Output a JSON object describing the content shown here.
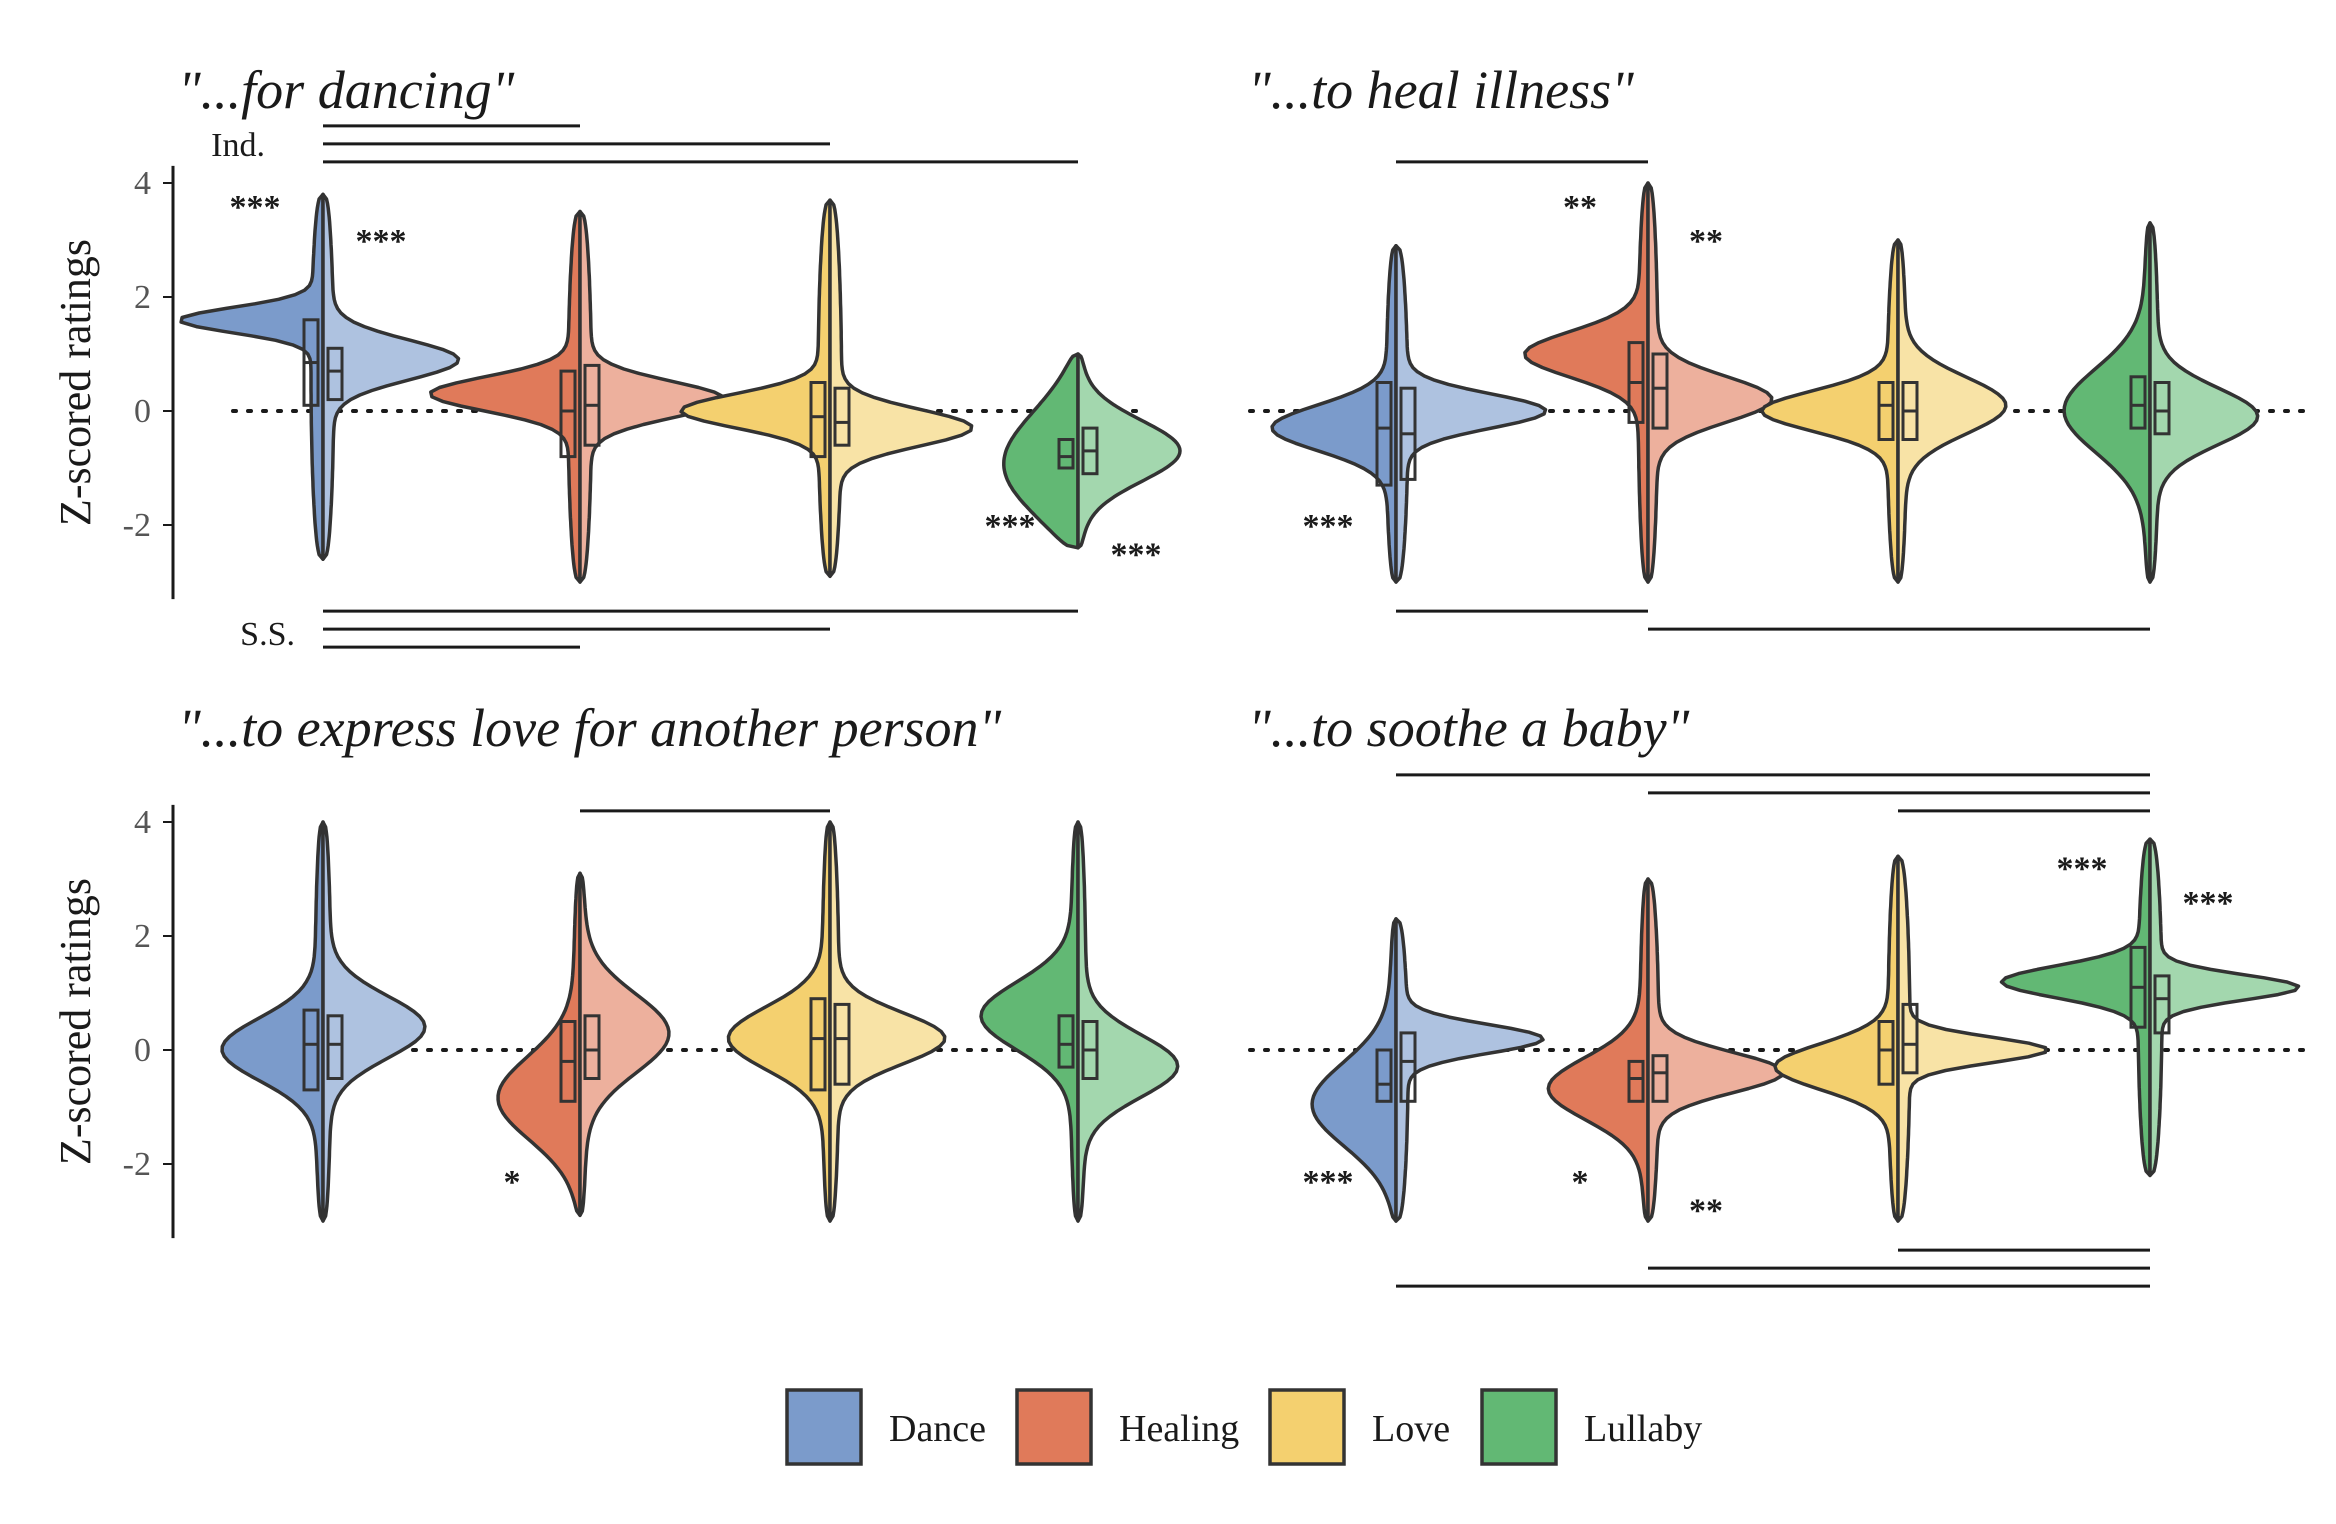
{
  "chart_data": {
    "type": "violin",
    "ylim": [
      -3.3,
      4.3
    ],
    "yticks": [
      -2,
      0,
      2,
      4
    ],
    "ylabel": "Z-scored ratings",
    "reference_line": {
      "y": 0,
      "style": "dotted"
    },
    "groups": [
      "Dance",
      "Healing",
      "Love",
      "Lullaby"
    ],
    "colors": {
      "Dance": {
        "ind": "#7b9bcb",
        "ss": "#aec2e0"
      },
      "Healing": {
        "ind": "#e07a5a",
        "ss": "#edb09d"
      },
      "Love": {
        "ind": "#f4d06f",
        "ss": "#f8e3a6"
      },
      "Lullaby": {
        "ind": "#62b874",
        "ss": "#a3d7ae"
      }
    },
    "bracket_labels": {
      "top": "Ind.",
      "bottom": "S.S."
    },
    "legend": [
      {
        "label": "Dance",
        "color": "#7b9bcb"
      },
      {
        "label": "Healing",
        "color": "#e07a5a"
      },
      {
        "label": "Love",
        "color": "#f4d06f"
      },
      {
        "label": "Lullaby",
        "color": "#62b874"
      }
    ],
    "panels": [
      {
        "title": "\"...for dancing\"",
        "violins": [
          {
            "group": "Dance",
            "range": [
              -2.6,
              3.8
            ],
            "ind_mode": 1.6,
            "ind_w": 0.22,
            "ss_mode": 0.9,
            "ss_w": 0.35,
            "box_ind": [
              0.1,
              0.85,
              1.6
            ],
            "box_ss": [
              0.2,
              0.7,
              1.1
            ]
          },
          {
            "group": "Healing",
            "range": [
              -3.0,
              3.5
            ],
            "ind_mode": 0.3,
            "ind_w": 0.3,
            "ss_mode": 0.2,
            "ss_w": 0.32,
            "box_ind": [
              -0.8,
              0.0,
              0.7
            ],
            "box_ss": [
              -0.6,
              0.1,
              0.8
            ]
          },
          {
            "group": "Love",
            "range": [
              -2.9,
              3.7
            ],
            "ind_mode": 0.0,
            "ind_w": 0.3,
            "ss_mode": -0.3,
            "ss_w": 0.32,
            "box_ind": [
              -0.8,
              -0.1,
              0.5
            ],
            "box_ss": [
              -0.6,
              -0.2,
              0.4
            ]
          },
          {
            "group": "Lullaby",
            "range": [
              -2.4,
              1.0
            ],
            "ind_mode": -1.0,
            "ind_w": 1.0,
            "ss_mode": -0.7,
            "ss_w": 0.55,
            "box_ind": [
              -1.0,
              -0.8,
              -0.5
            ],
            "box_ss": [
              -1.1,
              -0.7,
              -0.3
            ]
          }
        ],
        "stars": [
          {
            "pos": 1,
            "side": "ind",
            "text": "***",
            "y": 3.6
          },
          {
            "pos": 1,
            "side": "ss",
            "text": "***",
            "y": 3.0
          },
          {
            "pos": 4,
            "side": "ind",
            "text": "***",
            "y": -2.0
          },
          {
            "pos": 4,
            "side": "ss",
            "text": "***",
            "y": -2.5
          }
        ],
        "brackets_top": [
          [
            1,
            2
          ],
          [
            1,
            3
          ],
          [
            1,
            4
          ]
        ],
        "brackets_bottom": [
          [
            1,
            4
          ],
          [
            1,
            3
          ],
          [
            1,
            2
          ]
        ]
      },
      {
        "title": "\"...to heal illness\"",
        "violins": [
          {
            "group": "Dance",
            "range": [
              -3.0,
              2.9
            ],
            "ind_mode": -0.3,
            "ind_w": 0.4,
            "ss_mode": 0.0,
            "ss_w": 0.3,
            "box_ind": [
              -1.3,
              -0.3,
              0.5
            ],
            "box_ss": [
              -1.2,
              -0.4,
              0.4
            ]
          },
          {
            "group": "Healing",
            "range": [
              -3.0,
              4.0
            ],
            "ind_mode": 1.0,
            "ind_w": 0.4,
            "ss_mode": 0.2,
            "ss_w": 0.4,
            "box_ind": [
              -0.2,
              0.5,
              1.2
            ],
            "box_ss": [
              -0.3,
              0.4,
              1.0
            ]
          },
          {
            "group": "Love",
            "range": [
              -3.0,
              3.0
            ],
            "ind_mode": 0.0,
            "ind_w": 0.35,
            "ss_mode": 0.1,
            "ss_w": 0.5,
            "box_ind": [
              -0.5,
              0.1,
              0.5
            ],
            "box_ss": [
              -0.5,
              0.0,
              0.5
            ]
          },
          {
            "group": "Lullaby",
            "range": [
              -3.0,
              3.3
            ],
            "ind_mode": 0.0,
            "ind_w": 0.75,
            "ss_mode": -0.1,
            "ss_w": 0.5,
            "box_ind": [
              -0.3,
              0.1,
              0.6
            ],
            "box_ss": [
              -0.4,
              0.0,
              0.5
            ]
          }
        ],
        "stars": [
          {
            "pos": 1,
            "side": "ind",
            "text": "***",
            "y": -2.0
          },
          {
            "pos": 2,
            "side": "ind",
            "text": "**",
            "y": 3.6
          },
          {
            "pos": 2,
            "side": "ss",
            "text": "**",
            "y": 3.0
          }
        ],
        "brackets_top": [
          [
            1,
            2
          ]
        ],
        "brackets_bottom": [
          [
            1,
            2
          ],
          [
            2,
            4
          ]
        ]
      },
      {
        "title": "\"...to express love for another person\"",
        "violins": [
          {
            "group": "Dance",
            "range": [
              -3.0,
              4.0
            ],
            "ind_mode": 0.0,
            "ind_w": 0.55,
            "ss_mode": 0.4,
            "ss_w": 0.55,
            "box_ind": [
              -0.7,
              0.1,
              0.7
            ],
            "box_ss": [
              -0.5,
              0.1,
              0.6
            ]
          },
          {
            "group": "Healing",
            "range": [
              -2.9,
              3.1
            ],
            "ind_mode": -0.9,
            "ind_w": 0.75,
            "ss_mode": 0.3,
            "ss_w": 0.7,
            "box_ind": [
              -0.9,
              -0.2,
              0.5
            ],
            "box_ss": [
              -0.5,
              0.0,
              0.6
            ]
          },
          {
            "group": "Love",
            "range": [
              -3.0,
              4.0
            ],
            "ind_mode": 0.2,
            "ind_w": 0.55,
            "ss_mode": 0.2,
            "ss_w": 0.45,
            "box_ind": [
              -0.7,
              0.2,
              0.9
            ],
            "box_ss": [
              -0.6,
              0.2,
              0.8
            ]
          },
          {
            "group": "Lullaby",
            "range": [
              -3.0,
              4.0
            ],
            "ind_mode": 0.6,
            "ind_w": 0.6,
            "ss_mode": -0.3,
            "ss_w": 0.55,
            "box_ind": [
              -0.3,
              0.1,
              0.6
            ],
            "box_ss": [
              -0.5,
              0.0,
              0.5
            ]
          }
        ],
        "stars": [
          {
            "pos": 2,
            "side": "ind",
            "text": "*",
            "y": -2.3
          }
        ],
        "brackets_top": [
          [
            2,
            3
          ]
        ],
        "brackets_bottom": []
      },
      {
        "title": "\"...to soothe a baby\"",
        "violins": [
          {
            "group": "Dance",
            "range": [
              -3.0,
              2.3
            ],
            "ind_mode": -1.0,
            "ind_w": 0.75,
            "ss_mode": 0.2,
            "ss_w": 0.25,
            "box_ind": [
              -0.9,
              -0.6,
              0.0
            ],
            "box_ss": [
              -0.9,
              -0.2,
              0.3
            ]
          },
          {
            "group": "Healing",
            "range": [
              -3.0,
              3.0
            ],
            "ind_mode": -0.7,
            "ind_w": 0.55,
            "ss_mode": -0.4,
            "ss_w": 0.35,
            "box_ind": [
              -0.9,
              -0.5,
              -0.2
            ],
            "box_ss": [
              -0.9,
              -0.4,
              -0.1
            ]
          },
          {
            "group": "Love",
            "range": [
              -3.0,
              3.4
            ],
            "ind_mode": -0.3,
            "ind_w": 0.4,
            "ss_mode": 0.0,
            "ss_w": 0.22,
            "box_ind": [
              -0.6,
              0.0,
              0.5
            ],
            "box_ss": [
              -0.4,
              0.1,
              0.8
            ]
          },
          {
            "group": "Lullaby",
            "range": [
              -2.2,
              3.7
            ],
            "ind_mode": 1.2,
            "ind_w": 0.28,
            "ss_mode": 1.1,
            "ss_w": 0.22,
            "box_ind": [
              0.4,
              1.1,
              1.8
            ],
            "box_ss": [
              0.3,
              0.9,
              1.3
            ]
          }
        ],
        "stars": [
          {
            "pos": 1,
            "side": "ind",
            "text": "***",
            "y": -2.3
          },
          {
            "pos": 2,
            "side": "ind",
            "text": "*",
            "y": -2.3
          },
          {
            "pos": 2,
            "side": "ss",
            "text": "**",
            "y": -2.8
          },
          {
            "pos": 4,
            "side": "ind",
            "text": "***",
            "y": 3.2
          },
          {
            "pos": 4,
            "side": "ss",
            "text": "***",
            "y": 2.6
          }
        ],
        "brackets_top": [
          [
            1,
            4
          ],
          [
            2,
            4
          ],
          [
            3,
            4
          ]
        ],
        "brackets_bottom": [
          [
            3,
            4
          ],
          [
            2,
            4
          ],
          [
            1,
            4
          ]
        ]
      }
    ]
  }
}
